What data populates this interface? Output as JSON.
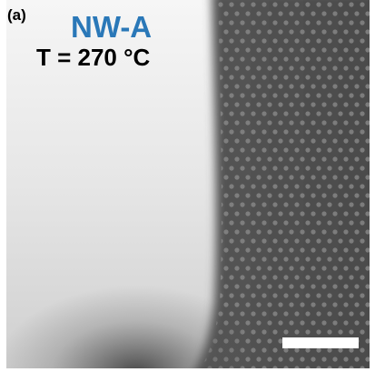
{
  "panel_label": "(a)",
  "sample": "NW-A",
  "temperature": "T = 270 °C"
}
